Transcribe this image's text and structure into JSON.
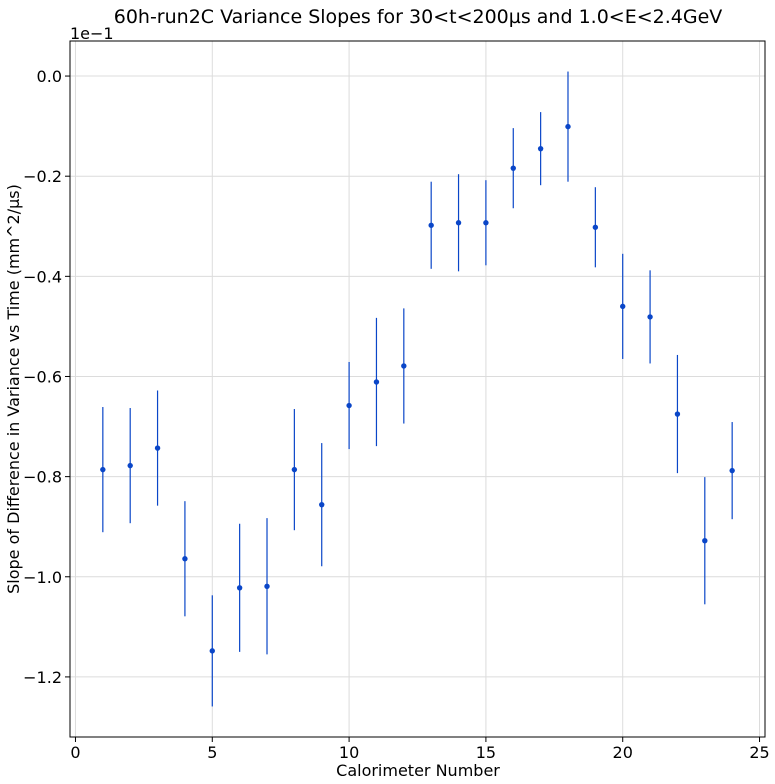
{
  "chart_data": {
    "type": "scatter",
    "title": "60h-run2C Variance Slopes for 30<t<200µs and 1.0<E<2.4GeV",
    "xlabel": "Calorimeter Number",
    "ylabel": "Slope of Difference in Variance vs Time (mm^2/µs)",
    "y_offset_label": "1e−1",
    "xlim": [
      -0.2,
      25.2
    ],
    "ylim": [
      -1.32,
      0.07
    ],
    "x_ticks": [
      0,
      5,
      10,
      15,
      20,
      25
    ],
    "x_tick_labels": [
      "0",
      "5",
      "10",
      "15",
      "20",
      "25"
    ],
    "y_ticks": [
      0.0,
      -0.2,
      -0.4,
      -0.6,
      -0.8,
      -1.0,
      -1.2
    ],
    "y_tick_labels": [
      "0.0",
      "−0.2",
      "−0.4",
      "−0.6",
      "−0.8",
      "−1.0",
      "−1.2"
    ],
    "grid": true,
    "marker_color": "#0a46c8",
    "series": [
      {
        "x": [
          1,
          2,
          3,
          4,
          5,
          6,
          7,
          8,
          9,
          10,
          11,
          12,
          13,
          14,
          15,
          16,
          17,
          18,
          19,
          20,
          21,
          22,
          23,
          24
        ],
        "y": [
          -0.786,
          -0.778,
          -0.743,
          -0.964,
          -1.148,
          -1.022,
          -1.019,
          -0.786,
          -0.856,
          -0.658,
          -0.611,
          -0.579,
          -0.298,
          -0.293,
          -0.293,
          -0.184,
          -0.145,
          -0.101,
          -0.302,
          -0.46,
          -0.481,
          -0.675,
          -0.928,
          -0.788
        ],
        "yerr": [
          0.125,
          0.115,
          0.115,
          0.115,
          0.111,
          0.128,
          0.136,
          0.121,
          0.123,
          0.087,
          0.128,
          0.115,
          0.087,
          0.097,
          0.085,
          0.08,
          0.073,
          0.11,
          0.08,
          0.105,
          0.093,
          0.118,
          0.127,
          0.097
        ]
      }
    ]
  }
}
